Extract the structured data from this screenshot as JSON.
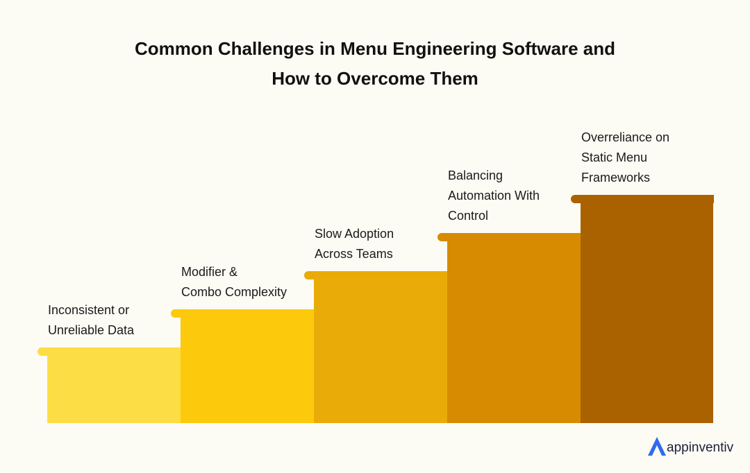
{
  "header": {
    "title_lines": [
      "Common Challenges in Menu Engineering Software and",
      "How to Overcome Them"
    ]
  },
  "steps": [
    {
      "lines": [
        "Inconsistent or",
        "Unreliable Data"
      ]
    },
    {
      "lines": [
        "Modifier &",
        "Combo Complexity"
      ]
    },
    {
      "lines": [
        "Slow Adoption",
        "Across Teams"
      ]
    },
    {
      "lines": [
        "Balancing",
        "Automation With",
        "Control"
      ]
    },
    {
      "lines": [
        "Overreliance on",
        "Static Menu",
        "Frameworks"
      ]
    }
  ],
  "logo": {
    "text": "appinventiv"
  }
}
